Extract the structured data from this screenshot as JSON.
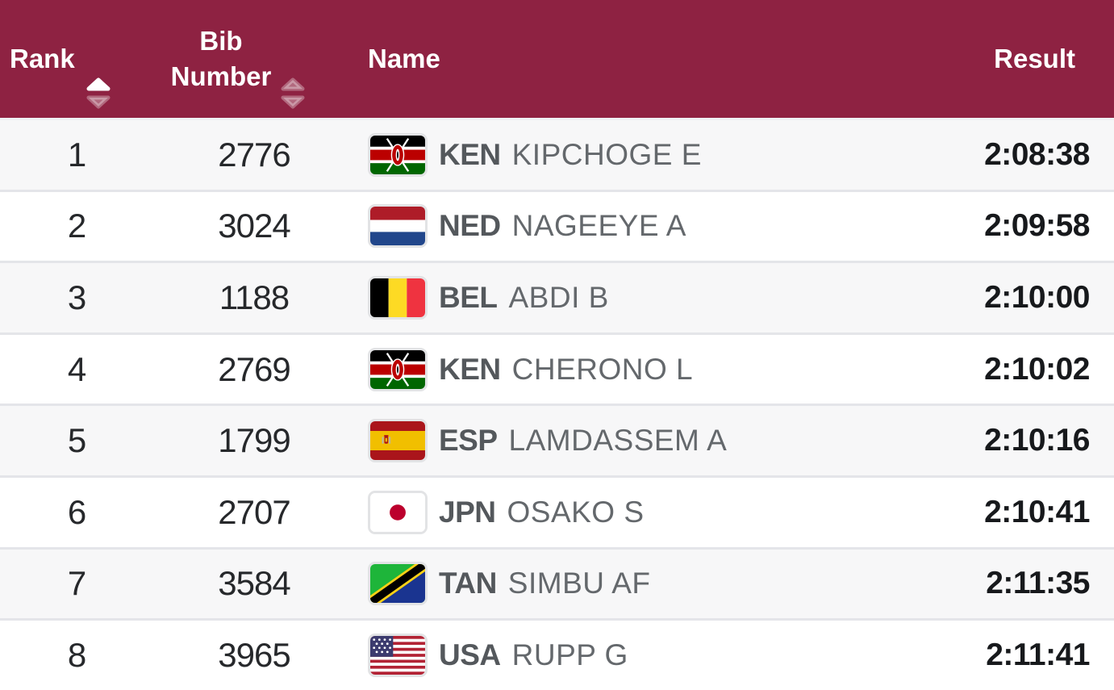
{
  "colors": {
    "header_bg": "#8e2242",
    "header_text": "#ffffff",
    "row_alt_bg": "#f7f7f8",
    "row_bg": "#ffffff",
    "separator": "#e4e5e9",
    "number_text": "#26282b",
    "noc_text": "#54585c",
    "name_text": "#64686c",
    "result_text": "#17191c",
    "sort_active": "#ffffff",
    "sort_inactive": "rgba(255,255,255,0.32)"
  },
  "header": {
    "rank_label": "Rank",
    "bib_label": "Bib Number",
    "name_label": "Name",
    "result_label": "Result",
    "rank_sort_state": "ascending",
    "bib_sort_state": "none"
  },
  "rows": [
    {
      "rank": "1",
      "bib": "2776",
      "country_code": "KEN",
      "athlete": "KIPCHOGE E",
      "result": "2:08:38"
    },
    {
      "rank": "2",
      "bib": "3024",
      "country_code": "NED",
      "athlete": "NAGEEYE A",
      "result": "2:09:58"
    },
    {
      "rank": "3",
      "bib": "1188",
      "country_code": "BEL",
      "athlete": "ABDI B",
      "result": "2:10:00"
    },
    {
      "rank": "4",
      "bib": "2769",
      "country_code": "KEN",
      "athlete": "CHERONO L",
      "result": "2:10:02"
    },
    {
      "rank": "5",
      "bib": "1799",
      "country_code": "ESP",
      "athlete": "LAMDASSEM A",
      "result": "2:10:16"
    },
    {
      "rank": "6",
      "bib": "2707",
      "country_code": "JPN",
      "athlete": "OSAKO S",
      "result": "2:10:41"
    },
    {
      "rank": "7",
      "bib": "3584",
      "country_code": "TAN",
      "athlete": "SIMBU AF",
      "result": "2:11:35"
    },
    {
      "rank": "8",
      "bib": "3965",
      "country_code": "USA",
      "athlete": "RUPP G",
      "result": "2:11:41"
    }
  ]
}
